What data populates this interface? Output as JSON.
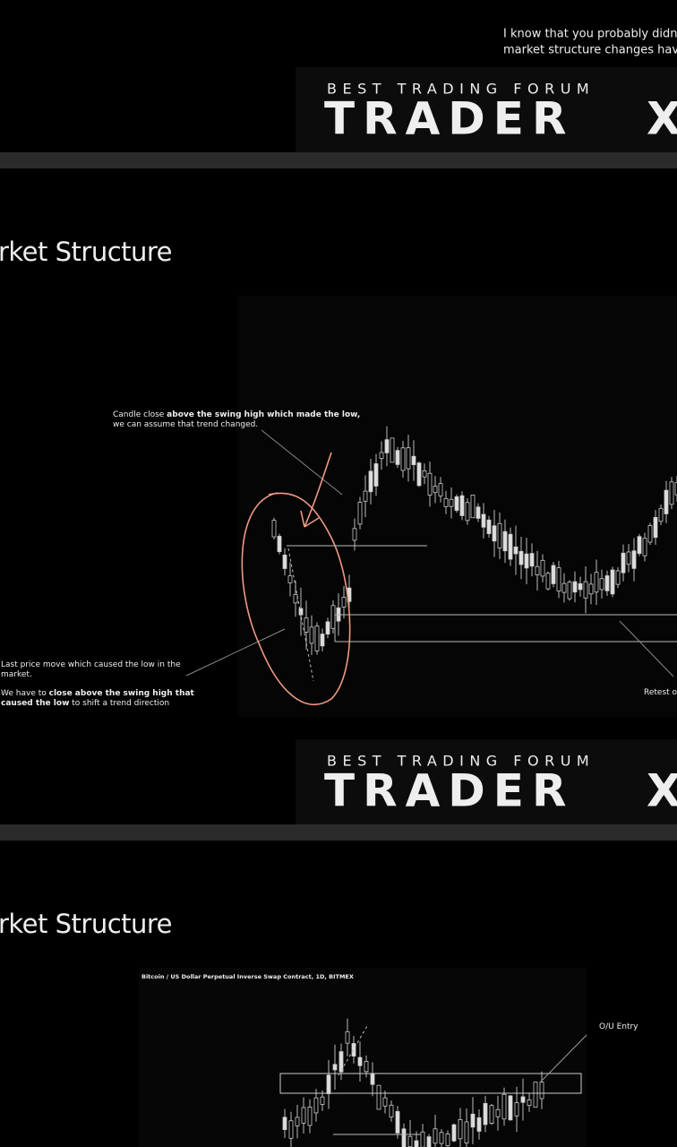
{
  "slides": [
    {
      "intro_lines": [
        "I know that you probably didn't",
        "market structure changes have"
      ],
      "logo": {
        "tagline": "BEST TRADING FORUM",
        "wordmark": "TRADER",
        "mark": "X"
      }
    },
    {
      "title": "rket Structure",
      "annotations": [
        {
          "lines": [
            [
              {
                "text": "Candle close ",
                "bold": false
              },
              {
                "text": "above the swing high which made the  low,",
                "bold": true
              }
            ],
            [
              {
                "text": "we can assume that trend changed.",
                "bold": false
              }
            ]
          ]
        },
        {
          "lines": [
            [
              {
                "text": "Last price move which caused the low in the",
                "bold": false
              }
            ],
            [
              {
                "text": "market.",
                "bold": false
              }
            ]
          ]
        },
        {
          "lines": [
            [
              {
                "text": "We have to ",
                "bold": false
              },
              {
                "text": "close above the swing high that",
                "bold": true
              }
            ],
            [
              {
                "text": "caused the low",
                "bold": true
              },
              {
                "text": " to shift a trend direction",
                "bold": false
              }
            ]
          ]
        },
        {
          "lines": [
            [
              {
                "text": "Retest o",
                "bold": false
              }
            ]
          ]
        }
      ],
      "logo": {
        "tagline": "BEST TRADING FORUM",
        "wordmark": "TRADER",
        "mark": "X"
      }
    },
    {
      "title": "rket Structure",
      "chart_header": "Bitcoin / US Dollar Perpetual Inverse Swap Contract, 1D, BITMEX",
      "annotations": [
        {
          "lines": [
            [
              {
                "text": "O/U Entry",
                "bold": false
              }
            ]
          ]
        }
      ]
    }
  ]
}
